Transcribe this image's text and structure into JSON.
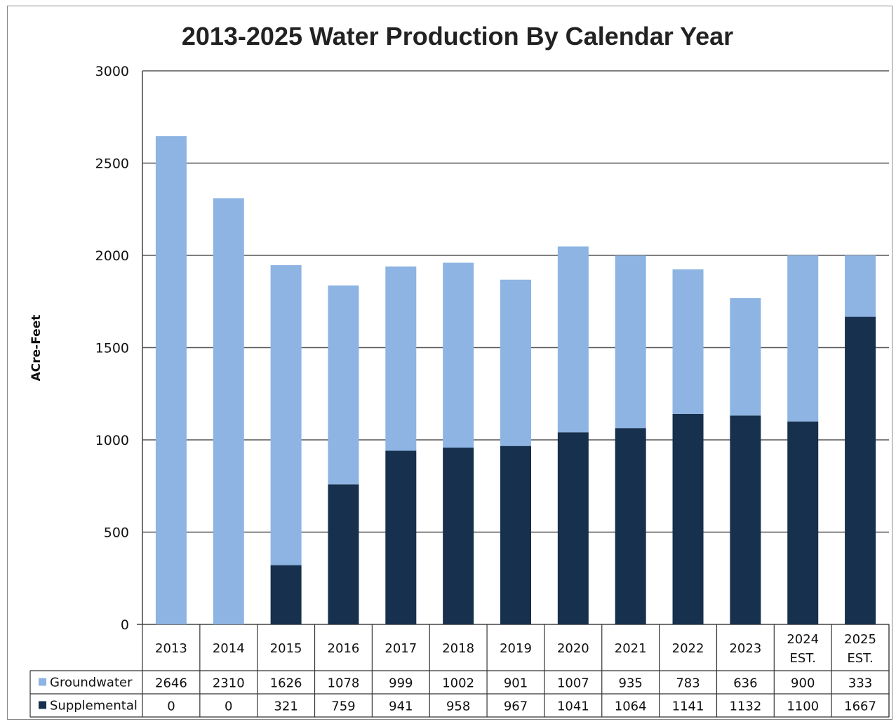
{
  "chart_data": {
    "type": "bar",
    "stacked": true,
    "title": "2013-2025 Water Production By Calendar Year",
    "ylabel": "ACre-Feet",
    "xlabel": "",
    "ylim": [
      0,
      3000
    ],
    "yticks": [
      0,
      500,
      1000,
      1500,
      2000,
      2500,
      3000
    ],
    "categories": [
      [
        "2013"
      ],
      [
        "2014"
      ],
      [
        "2015"
      ],
      [
        "2016"
      ],
      [
        "2017"
      ],
      [
        "2018"
      ],
      [
        "2019"
      ],
      [
        "2020"
      ],
      [
        "2021"
      ],
      [
        "2022"
      ],
      [
        "2023"
      ],
      [
        "2024",
        "EST."
      ],
      [
        "2025",
        "EST."
      ]
    ],
    "series": [
      {
        "name": "Groundwater",
        "color": "#8db4e2",
        "values": [
          2646,
          2310,
          1626,
          1078,
          999,
          1002,
          901,
          1007,
          935,
          783,
          636,
          900,
          333
        ],
        "labels": [
          "2646",
          "2310",
          "1626",
          "1078",
          "999",
          "1002",
          "901",
          "1007",
          "935",
          "783",
          "636",
          "900",
          "333"
        ]
      },
      {
        "name": "Supplemental",
        "color": "#16304d",
        "values": [
          0,
          0,
          321,
          759,
          941,
          958,
          967,
          1041,
          1064,
          1141,
          1132,
          1100,
          1667
        ],
        "labels": [
          "0",
          "0",
          "321",
          "759",
          "941",
          "958",
          "967",
          "1041",
          "1064",
          "1141",
          "1132",
          "1100",
          "1667"
        ]
      }
    ],
    "stack_order": [
      "Supplemental",
      "Groundwater"
    ],
    "grid": true,
    "legend_placement": "data-table",
    "data_table": true
  }
}
